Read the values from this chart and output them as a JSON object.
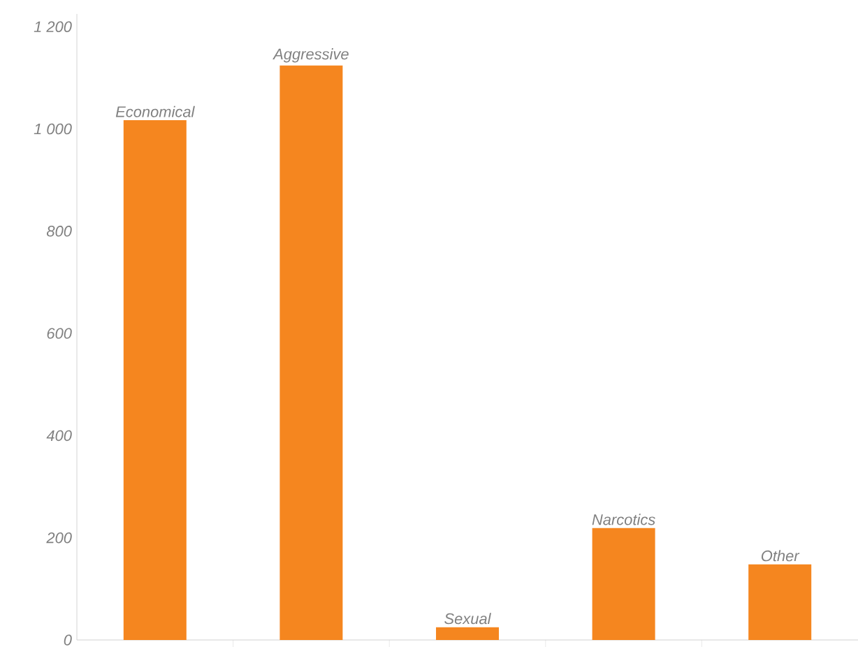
{
  "chart_data": {
    "type": "bar",
    "categories": [
      "Economical",
      "Aggressive",
      "Sexual",
      "Narcotics",
      "Other"
    ],
    "values": [
      1017,
      1124,
      25,
      219,
      148
    ],
    "color": "#f5861f",
    "ylim": [
      0,
      1225
    ],
    "yticks": [
      0,
      200,
      400,
      600,
      800,
      {
        "value": 1000,
        "label": "1 000"
      },
      {
        "value": 1200,
        "label": "1 200"
      }
    ]
  }
}
